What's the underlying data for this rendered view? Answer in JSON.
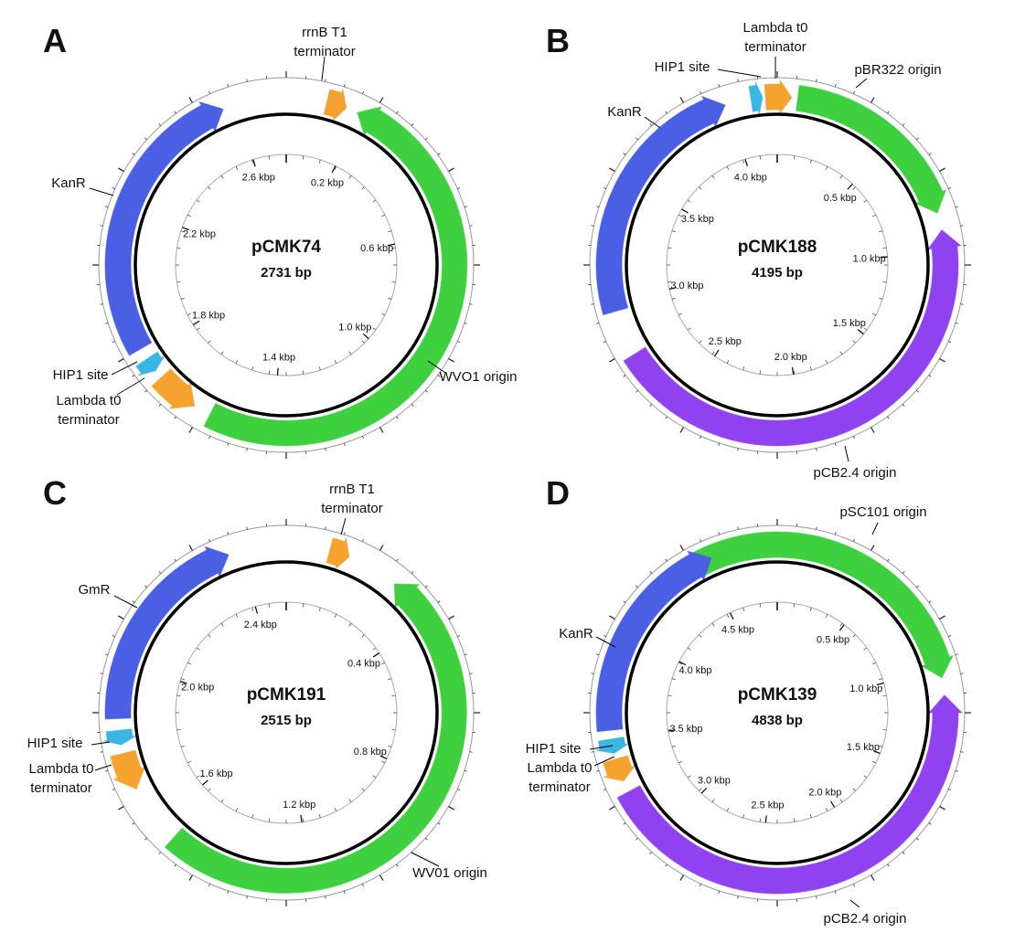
{
  "panels": [
    {
      "letter": "A",
      "name": "pCMK74",
      "size": "2731 bp",
      "ticks": [
        "0.2 kbp",
        "0.6 kbp",
        "1.0 kbp",
        "1.4 kbp",
        "1.8 kbp",
        "2.2 kbp",
        "2.6 kbp"
      ],
      "features": [
        {
          "label": [
            "rrnB T1",
            "terminator"
          ]
        },
        {
          "label": [
            "WVO1 origin"
          ]
        },
        {
          "label": [
            "Lambda t0",
            "terminator"
          ]
        },
        {
          "label": [
            "HIP1 site"
          ]
        },
        {
          "label": [
            "KanR"
          ]
        }
      ]
    },
    {
      "letter": "B",
      "name": "pCMK188",
      "size": "4195 bp",
      "ticks": [
        "0.5 kbp",
        "1.0 kbp",
        "1.5 kbp",
        "2.0 kbp",
        "2.5 kbp",
        "3.0 kbp",
        "3.5 kbp",
        "4.0 kbp"
      ],
      "features": [
        {
          "label": [
            "Lambda t0",
            "terminator"
          ]
        },
        {
          "label": [
            "HIP1 site"
          ]
        },
        {
          "label": [
            "KanR"
          ]
        },
        {
          "label": [
            "pBR322 origin"
          ]
        },
        {
          "label": [
            "pCB2.4 origin"
          ]
        }
      ]
    },
    {
      "letter": "C",
      "name": "pCMK191",
      "size": "2515 bp",
      "ticks": [
        "0.4 kbp",
        "0.8 kbp",
        "1.2 kbp",
        "1.6 kbp",
        "2.0 kbp",
        "2.4 kbp"
      ],
      "features": [
        {
          "label": [
            "rrnB T1",
            "terminator"
          ]
        },
        {
          "label": [
            "WV01 origin"
          ]
        },
        {
          "label": [
            "Lambda t0",
            "terminator"
          ]
        },
        {
          "label": [
            "HIP1 site"
          ]
        },
        {
          "label": [
            "GmR"
          ]
        }
      ]
    },
    {
      "letter": "D",
      "name": "pCMK139",
      "size": "4838 bp",
      "ticks": [
        "0.5 kbp",
        "1.0 kbp",
        "1.5 kbp",
        "2.0 kbp",
        "2.5 kbp",
        "3.0 kbp",
        "3.5 kbp",
        "4.0 kbp",
        "4.5 kbp"
      ],
      "features": [
        {
          "label": [
            "pSC101 origin"
          ]
        },
        {
          "label": [
            "pCB2.4 origin"
          ]
        },
        {
          "label": [
            "Lambda t0",
            "terminator"
          ]
        },
        {
          "label": [
            "HIP1 site"
          ]
        },
        {
          "label": [
            "KanR"
          ]
        }
      ]
    }
  ]
}
